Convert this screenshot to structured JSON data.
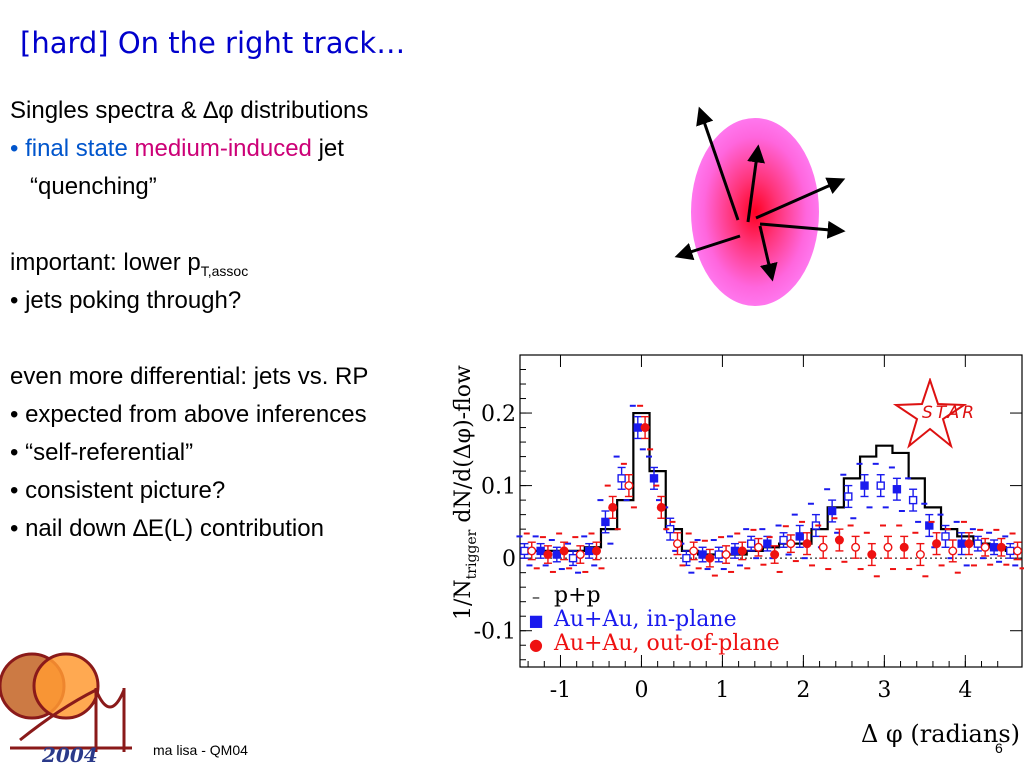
{
  "slide": {
    "title": "[hard] On the right track…",
    "lines": {
      "l1": "Singles spectra & ∆φ distributions",
      "l2_bullet": "• ",
      "l2_blue": "final state ",
      "l2_magenta": "medium-induced",
      "l2_black": " jet",
      "l3": "“quenching”",
      "l4_main": "important: lower p",
      "l4_sub": "T,assoc",
      "l5": "• jets poking through?",
      "l6": "even more differential: jets vs. RP",
      "l7": "• expected from above inferences",
      "l8": "• “self-referential”",
      "l9": "• consistent picture?",
      "l10": "• nail down ∆E(L) contribution"
    },
    "footer": "ma lisa - QM04",
    "page_number": "6",
    "logo_year": "2004",
    "star_logo_text": "STAR"
  },
  "colors": {
    "title": "#0000cc",
    "blue_text": "#0055cc",
    "magenta_text": "#cc0077",
    "pp": "#000000",
    "in_plane": "#1a1aee",
    "out_of_plane": "#ee1111"
  },
  "chart_data": {
    "type": "line",
    "title": "",
    "xlabel": "Δ φ (radians)",
    "ylabel": "1/N_trigger dN/d(Δφ)-flow",
    "ylabel_prefix": "1/N",
    "ylabel_sub": "trigger",
    "ylabel_main": " dN/d(Δφ)-flow",
    "xlim": [
      -1.5,
      4.7
    ],
    "ylim": [
      -0.15,
      0.28
    ],
    "x_ticks": [
      -1,
      0,
      1,
      2,
      3,
      4
    ],
    "x_tick_labels": [
      "-1",
      "0",
      "1",
      "2",
      "3",
      "4"
    ],
    "y_ticks": [
      -0.1,
      0,
      0.1,
      0.2
    ],
    "y_tick_labels": [
      "-0.1",
      "0",
      "0.1",
      "0.2"
    ],
    "legend": {
      "placement": "bottom-left",
      "entries": [
        {
          "marker": "–",
          "label": "p+p"
        },
        {
          "marker": "■",
          "label": "Au+Au, in-plane"
        },
        {
          "marker": "●",
          "label": "Au+Au, out-of-plane"
        }
      ]
    },
    "bin_width": 0.2,
    "x": [
      -1.4,
      -1.2,
      -1.0,
      -0.8,
      -0.6,
      -0.4,
      -0.2,
      0.0,
      0.2,
      0.4,
      0.6,
      0.8,
      1.0,
      1.2,
      1.4,
      1.6,
      1.8,
      2.0,
      2.2,
      2.4,
      2.6,
      2.8,
      3.0,
      3.2,
      3.4,
      3.6,
      3.8,
      4.0,
      4.2,
      4.4,
      4.6
    ],
    "series": [
      {
        "name": "p+p",
        "style": "histogram",
        "values": [
          0.01,
          0.01,
          0.01,
          0.01,
          0.015,
          0.04,
          0.08,
          0.2,
          0.12,
          0.04,
          0.01,
          0.005,
          0.005,
          0.005,
          0.01,
          0.015,
          0.02,
          0.02,
          0.04,
          0.07,
          0.11,
          0.14,
          0.155,
          0.145,
          0.11,
          0.07,
          0.04,
          0.03,
          0.02,
          0.015,
          0.01
        ]
      },
      {
        "name": "Au+Au, in-plane",
        "style": "markers",
        "values": [
          0.01,
          0.01,
          0.005,
          0.0,
          0.01,
          0.05,
          0.11,
          0.18,
          0.11,
          0.04,
          0.0,
          0.005,
          0.005,
          0.01,
          0.02,
          0.02,
          0.025,
          0.03,
          0.045,
          0.065,
          0.085,
          0.1,
          0.1,
          0.095,
          0.08,
          0.045,
          0.03,
          0.02,
          0.02,
          0.015,
          0.01
        ],
        "errors": [
          0.01,
          0.01,
          0.01,
          0.01,
          0.01,
          0.015,
          0.015,
          0.015,
          0.015,
          0.015,
          0.01,
          0.01,
          0.01,
          0.01,
          0.01,
          0.01,
          0.01,
          0.015,
          0.015,
          0.015,
          0.015,
          0.015,
          0.015,
          0.015,
          0.015,
          0.015,
          0.015,
          0.015,
          0.01,
          0.01,
          0.01
        ]
      },
      {
        "name": "Au+Au, out-of-plane",
        "style": "markers",
        "values": [
          0.01,
          0.005,
          0.01,
          0.005,
          0.01,
          0.07,
          0.1,
          0.18,
          0.07,
          0.02,
          0.01,
          0.0,
          0.005,
          0.01,
          0.015,
          0.005,
          0.02,
          0.02,
          0.015,
          0.025,
          0.015,
          0.005,
          0.015,
          0.015,
          0.005,
          0.02,
          0.01,
          0.02,
          0.015,
          0.015,
          0.01
        ],
        "errors": [
          0.012,
          0.012,
          0.012,
          0.012,
          0.012,
          0.015,
          0.015,
          0.015,
          0.015,
          0.015,
          0.012,
          0.012,
          0.012,
          0.012,
          0.012,
          0.012,
          0.012,
          0.015,
          0.015,
          0.015,
          0.015,
          0.015,
          0.015,
          0.015,
          0.015,
          0.015,
          0.015,
          0.015,
          0.012,
          0.012,
          0.012
        ]
      }
    ]
  }
}
